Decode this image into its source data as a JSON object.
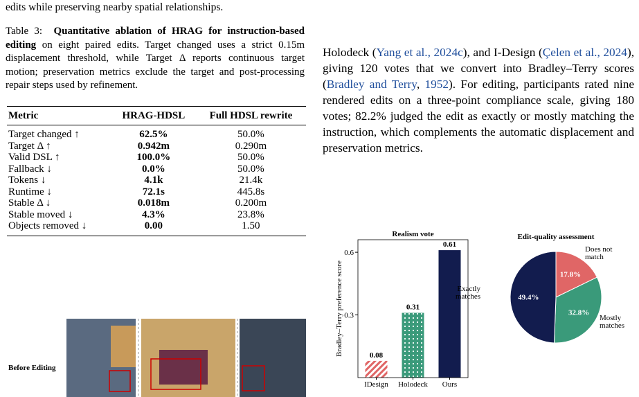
{
  "top_text": "edits while preserving nearby spatial relationships.",
  "caption": {
    "label": "Table 3:",
    "title": "Quantitative ablation of HRAG for instruction-based editing",
    "body": "on eight paired edits. Target changed uses a strict 0.15m displacement threshold, while Target Δ reports continuous target motion; preservation metrics exclude the target and post-processing repair steps used by refinement."
  },
  "table": {
    "header": [
      "Metric",
      "HRAG-HDSL",
      "Full HDSL rewrite"
    ],
    "rows": [
      [
        "Target changed ↑",
        "62.5%",
        "50.0%"
      ],
      [
        "Target Δ ↑",
        "0.942m",
        "0.290m"
      ],
      [
        "Valid DSL ↑",
        "100.0%",
        "50.0%"
      ],
      [
        "Fallback ↓",
        "0.0%",
        "50.0%"
      ],
      [
        "Tokens ↓",
        "4.1k",
        "21.4k"
      ],
      [
        "Runtime ↓",
        "72.1s",
        "445.8s"
      ],
      [
        "Stable Δ ↓",
        "0.018m",
        "0.200m"
      ],
      [
        "Stable moved ↓",
        "4.3%",
        "23.8%"
      ],
      [
        "Objects removed ↓",
        "0.00",
        "1.50"
      ]
    ]
  },
  "figure": {
    "row_label": "Before Editing"
  },
  "paragraph": [
    "Holodeck (",
    "Yang et al., 2024c",
    "), and I-Design (",
    "Çelen et al., 2024",
    "), giving 120 votes that we convert into Bradley–Terry scores (",
    "Bradley and Terry",
    ", ",
    "1952",
    "). For editing, participants rated nine rendered edits on a three-point compliance scale, giving 180 votes; 82.2% judged the edit as exactly or mostly matching the instruction, which complements the automatic displacement and preservation metrics."
  ],
  "chart_data": [
    {
      "type": "bar",
      "title": "Realism vote",
      "y_label": "Bradley–Terry preference score",
      "categories": [
        "IDesign",
        "Holodeck",
        "Ours"
      ],
      "values": [
        0.08,
        0.31,
        0.61
      ],
      "colors": [
        "#e06666",
        "#3a9a7a",
        "#121c4e"
      ],
      "ylim": [
        0,
        0.66
      ],
      "yticks": [
        0.3,
        0.6
      ]
    },
    {
      "type": "pie",
      "title": "Edit-quality assessment",
      "categories": [
        "Does not match",
        "Mostly matches",
        "Exactly matches"
      ],
      "values": [
        17.8,
        32.8,
        49.4
      ],
      "value_labels": [
        "17.8%",
        "32.8%",
        "49.4%"
      ],
      "colors": [
        "#e06666",
        "#3a9a7a",
        "#121c4e"
      ]
    }
  ]
}
